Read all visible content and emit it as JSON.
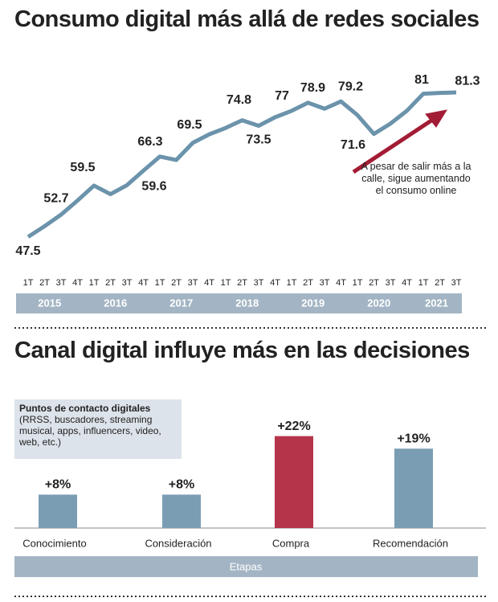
{
  "chart_data": [
    {
      "type": "line",
      "title": "Consumo digital más allá de redes sociales",
      "categories": [
        "1T",
        "2T",
        "3T",
        "4T",
        "1T",
        "2T",
        "3T",
        "4T",
        "1T",
        "2T",
        "3T",
        "4T",
        "1T",
        "2T",
        "3T",
        "4T",
        "1T",
        "2T",
        "3T",
        "4T",
        "1T",
        "2T",
        "3T",
        "4T",
        "1T",
        "2T",
        "3T"
      ],
      "years": [
        "2015",
        "2016",
        "2017",
        "2018",
        "2019",
        "2020",
        "2021"
      ],
      "values": [
        47.5,
        50,
        52.7,
        56,
        59.5,
        57.5,
        59.6,
        63,
        66.3,
        65.5,
        69.5,
        71.5,
        73,
        74.8,
        73.5,
        75.5,
        77,
        78.9,
        77.5,
        79.2,
        76,
        71.6,
        74,
        77,
        81,
        81.2,
        81.3
      ],
      "value_labels": [
        "47.5",
        null,
        "52.7",
        null,
        "59.5",
        null,
        "59.6",
        null,
        "66.3",
        null,
        "69.5",
        null,
        null,
        "74.8",
        "73.5",
        null,
        "77",
        "78.9",
        null,
        "79.2",
        null,
        "71.6",
        null,
        null,
        "81",
        null,
        "81.3"
      ],
      "color": "#6b93ab",
      "ylim": [
        45,
        83
      ],
      "annotation": "A pesar de salir más a la calle, sigue aumentando el consumo online",
      "annotation_color": "#a31c36"
    },
    {
      "type": "bar",
      "title": "Canal digital influye más en las decisiones",
      "legend_title": "Puntos de contacto digitales",
      "legend_text": "(RRSS, buscadores, streaming musical, apps, influencers, video, web, etc.)",
      "categories": [
        "Conocimiento",
        "Consideración",
        "Compra",
        "Recomendación"
      ],
      "values": [
        8,
        8,
        22,
        19
      ],
      "value_labels": [
        "+8%",
        "+8%",
        "+22%",
        "+19%"
      ],
      "colors": [
        "#7a9db4",
        "#7a9db4",
        "#b5344a",
        "#7a9db4"
      ],
      "ylim": [
        0,
        25
      ],
      "xlabel": "Etapas"
    }
  ]
}
